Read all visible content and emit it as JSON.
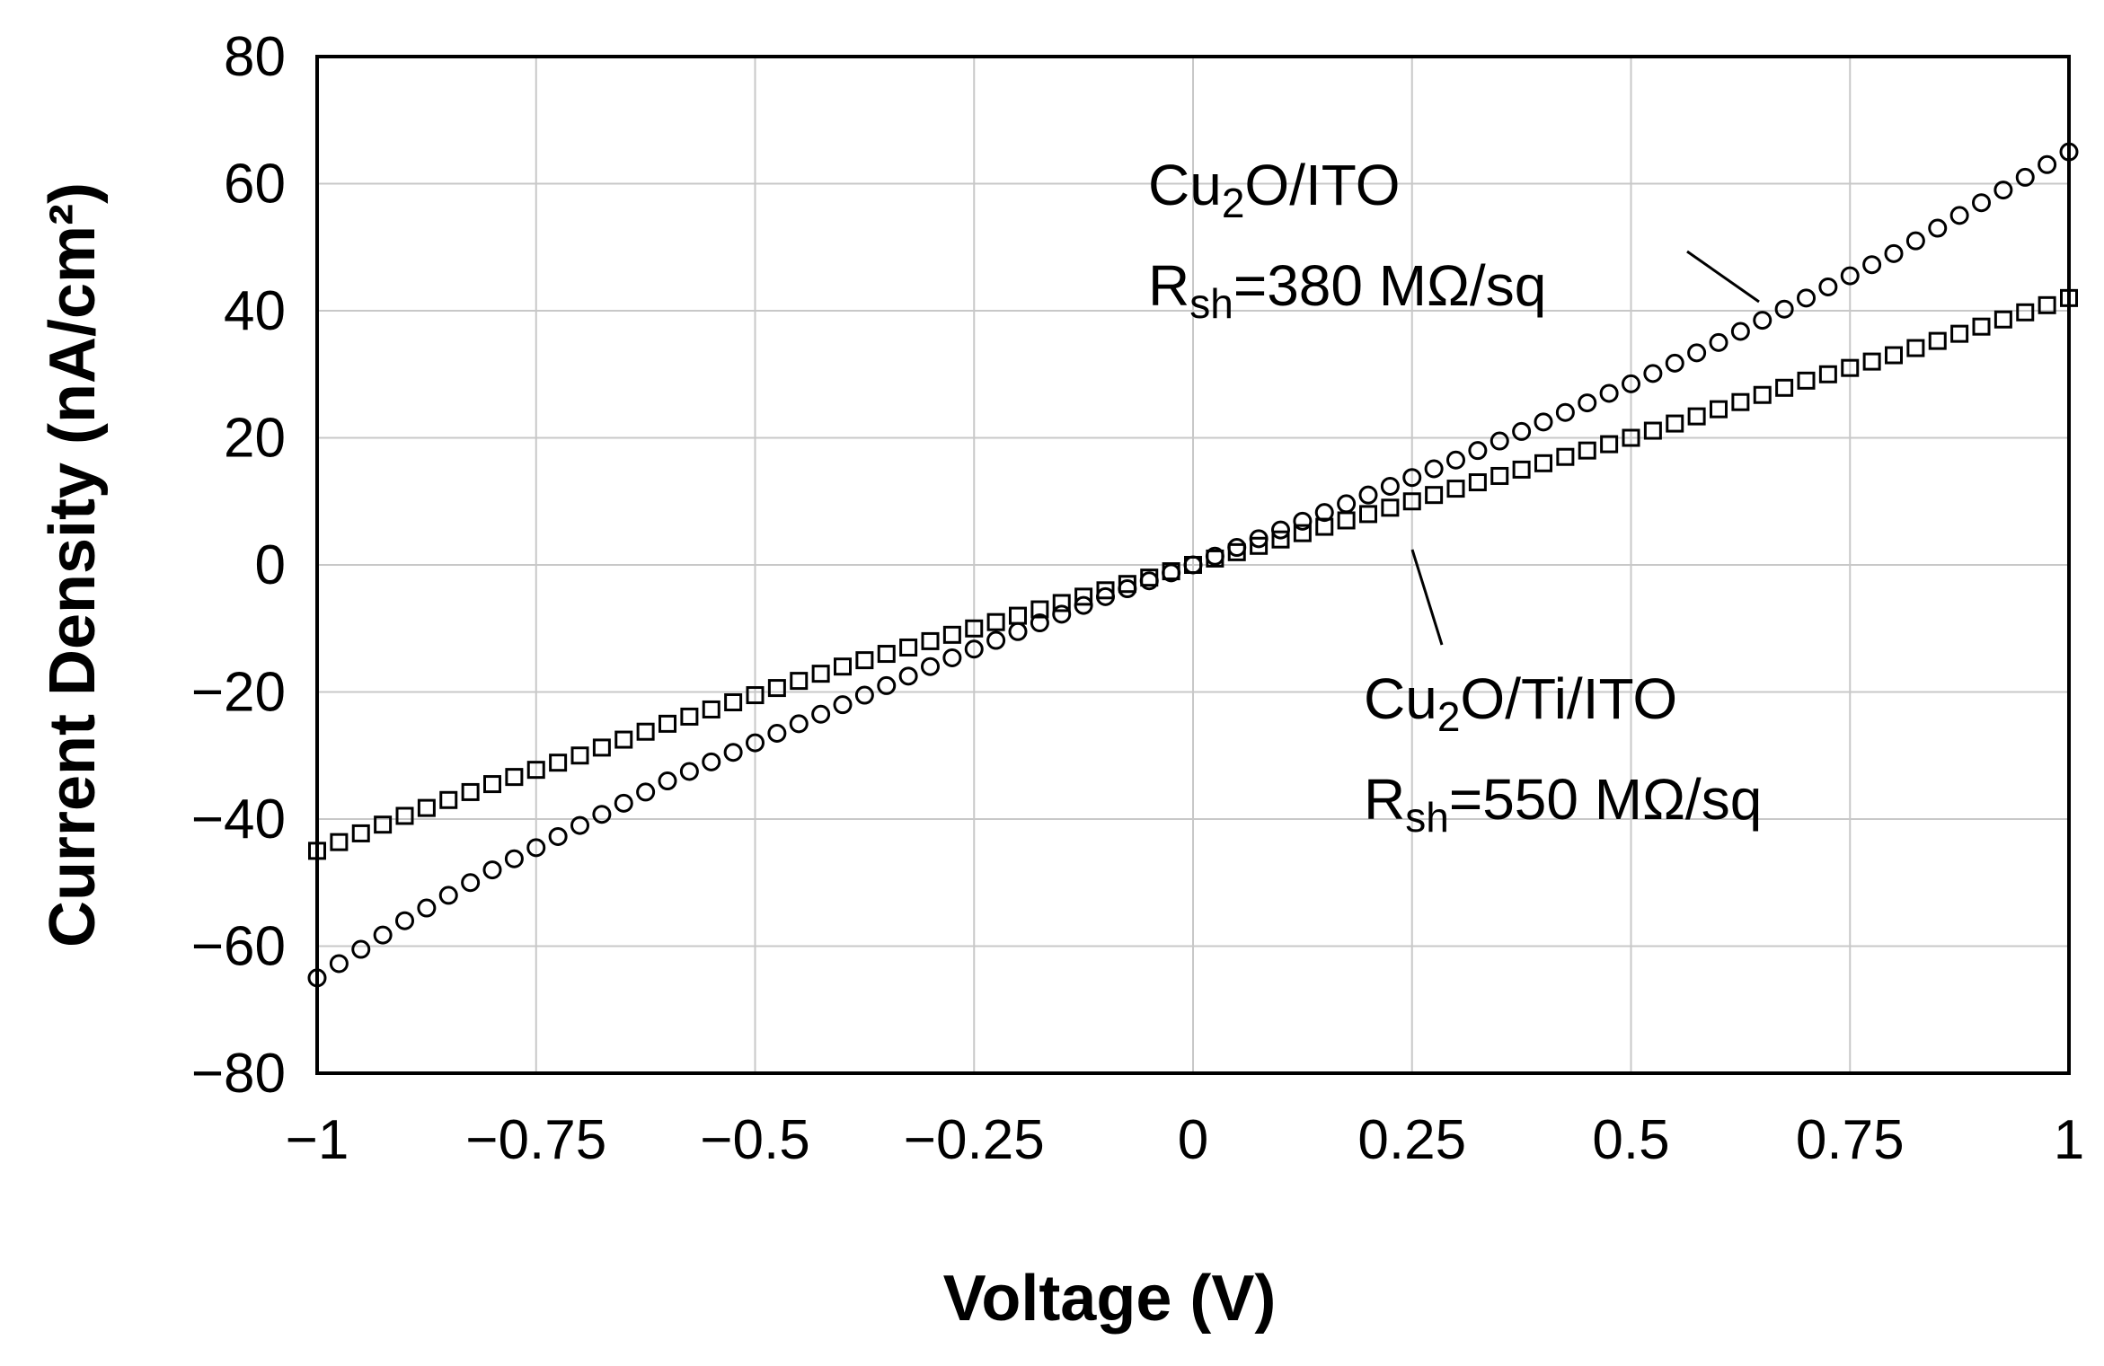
{
  "chart_data": {
    "type": "scatter",
    "xlabel": "Voltage (V)",
    "ylabel": "Current Density (nA/cm²)",
    "xlim": [
      -1,
      1
    ],
    "ylim": [
      -80,
      80
    ],
    "grid": true,
    "x_ticks": [
      -1,
      -0.75,
      -0.5,
      -0.25,
      0,
      0.25,
      0.5,
      0.75,
      1
    ],
    "x_tick_labels": [
      "−1",
      "−0.75",
      "−0.5",
      "−0.25",
      "0",
      "0.25",
      "0.5",
      "0.75",
      "1"
    ],
    "y_ticks": [
      80,
      60,
      40,
      20,
      0,
      -20,
      -40,
      -60,
      -80
    ],
    "y_tick_labels": [
      "80",
      "60",
      "40",
      "20",
      "0",
      "−20",
      "−40",
      "−60",
      "−80"
    ],
    "series": [
      {
        "name": "Cu2O/ITO",
        "marker": "circle",
        "x": [
          -1,
          -0.9,
          -0.8,
          -0.7,
          -0.6,
          -0.5,
          -0.4,
          -0.3,
          -0.2,
          -0.1,
          0,
          0.1,
          0.2,
          0.3,
          0.4,
          0.5,
          0.6,
          0.7,
          0.8,
          0.9,
          1
        ],
        "y": [
          -65,
          -56,
          -48,
          -41,
          -34,
          -28,
          -22,
          -16,
          -10.5,
          -5,
          0,
          5.5,
          11,
          16.5,
          22.5,
          28.5,
          35,
          42,
          49,
          57,
          65
        ]
      },
      {
        "name": "Cu2O/Ti/ITO",
        "marker": "square",
        "x": [
          -1,
          -0.9,
          -0.8,
          -0.7,
          -0.6,
          -0.5,
          -0.4,
          -0.3,
          -0.2,
          -0.1,
          0,
          0.1,
          0.2,
          0.3,
          0.4,
          0.5,
          0.6,
          0.7,
          0.8,
          0.9,
          1
        ],
        "y": [
          -45,
          -39.5,
          -34.5,
          -30,
          -25,
          -20.5,
          -16,
          -12,
          -8,
          -4,
          0,
          4,
          8,
          12,
          16,
          20,
          24.5,
          29,
          33,
          37.5,
          42
        ]
      }
    ],
    "annotations": [
      {
        "line1_base": "Cu",
        "line1_sub": "2",
        "line1_rest": "O/ITO",
        "line2_base": "R",
        "line2_sub": "sh",
        "line2_rest": "=380 MΩ/sq"
      },
      {
        "line1_base": "Cu",
        "line1_sub": "2",
        "line1_rest": "O/Ti/ITO",
        "line2_base": "R",
        "line2_sub": "sh",
        "line2_rest": "=550 MΩ/sq"
      }
    ]
  }
}
